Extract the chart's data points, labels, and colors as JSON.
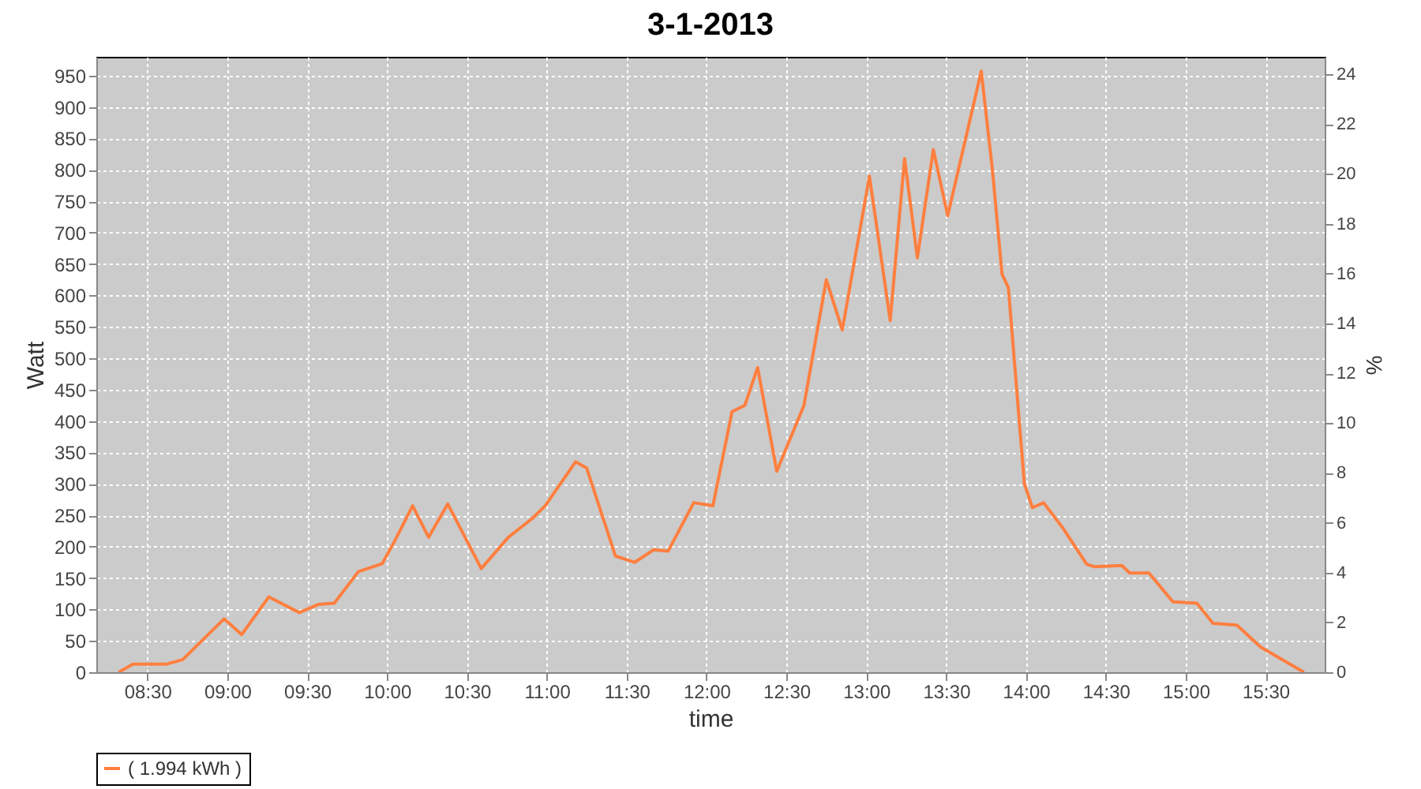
{
  "chart_data": {
    "type": "line",
    "title": "3-1-2013",
    "xlabel": "time",
    "ylabel": "Watt",
    "y2label": "%",
    "x": [
      8.32,
      8.41,
      8.62,
      8.72,
      8.98,
      9.09,
      9.26,
      9.45,
      9.57,
      9.67,
      9.82,
      9.97,
      10.05,
      10.16,
      10.26,
      10.38,
      10.59,
      10.76,
      10.91,
      10.99,
      11.18,
      11.25,
      11.43,
      11.55,
      11.67,
      11.76,
      11.92,
      12.04,
      12.16,
      12.24,
      12.32,
      12.44,
      12.61,
      12.75,
      12.85,
      13.02,
      13.15,
      13.24,
      13.32,
      13.42,
      13.51,
      13.72,
      13.79,
      13.85,
      13.89,
      13.99,
      14.04,
      14.11,
      14.23,
      14.38,
      14.43,
      14.6,
      14.65,
      14.77,
      14.92,
      15.07,
      15.17,
      15.32,
      15.47,
      15.74
    ],
    "series": [
      {
        "name": "( 1.994 kWh )",
        "color": "#ff7f3f",
        "values": [
          0,
          13,
          13,
          20,
          85,
          60,
          120,
          95,
          108,
          110,
          160,
          173,
          210,
          265,
          215,
          268,
          165,
          215,
          245,
          265,
          335,
          325,
          185,
          175,
          195,
          193,
          270,
          265,
          415,
          425,
          485,
          320,
          425,
          625,
          545,
          790,
          560,
          818,
          660,
          832,
          727,
          957,
          800,
          634,
          612,
          300,
          262,
          270,
          230,
          172,
          168,
          170,
          158,
          158,
          112,
          110,
          78,
          75,
          40,
          0
        ]
      }
    ],
    "xlim": [
      8.18,
      15.87
    ],
    "xticks": [
      {
        "value": 8.5,
        "label": "08:30"
      },
      {
        "value": 9,
        "label": "09:00"
      },
      {
        "value": 9.5,
        "label": "09:30"
      },
      {
        "value": 10,
        "label": "10:00"
      },
      {
        "value": 10.5,
        "label": "10:30"
      },
      {
        "value": 11,
        "label": "11:00"
      },
      {
        "value": 11.5,
        "label": "11:30"
      },
      {
        "value": 12,
        "label": "12:00"
      },
      {
        "value": 12.5,
        "label": "12:30"
      },
      {
        "value": 13,
        "label": "13:00"
      },
      {
        "value": 13.5,
        "label": "13:30"
      },
      {
        "value": 14,
        "label": "14:00"
      },
      {
        "value": 14.5,
        "label": "14:30"
      },
      {
        "value": 15,
        "label": "15:00"
      },
      {
        "value": 15.5,
        "label": "15:30"
      }
    ],
    "ylim": [
      0,
      980
    ],
    "yticks": [
      0,
      50,
      100,
      150,
      200,
      250,
      300,
      350,
      400,
      450,
      500,
      550,
      600,
      650,
      700,
      750,
      800,
      850,
      900,
      950
    ],
    "y2lim": [
      0,
      24.7
    ],
    "y2ticks": [
      0,
      2,
      4,
      6,
      8,
      10,
      12,
      14,
      16,
      18,
      20,
      22,
      24
    ],
    "grid": true,
    "legend": "bottom",
    "marker": "none",
    "line_style": "solid"
  }
}
